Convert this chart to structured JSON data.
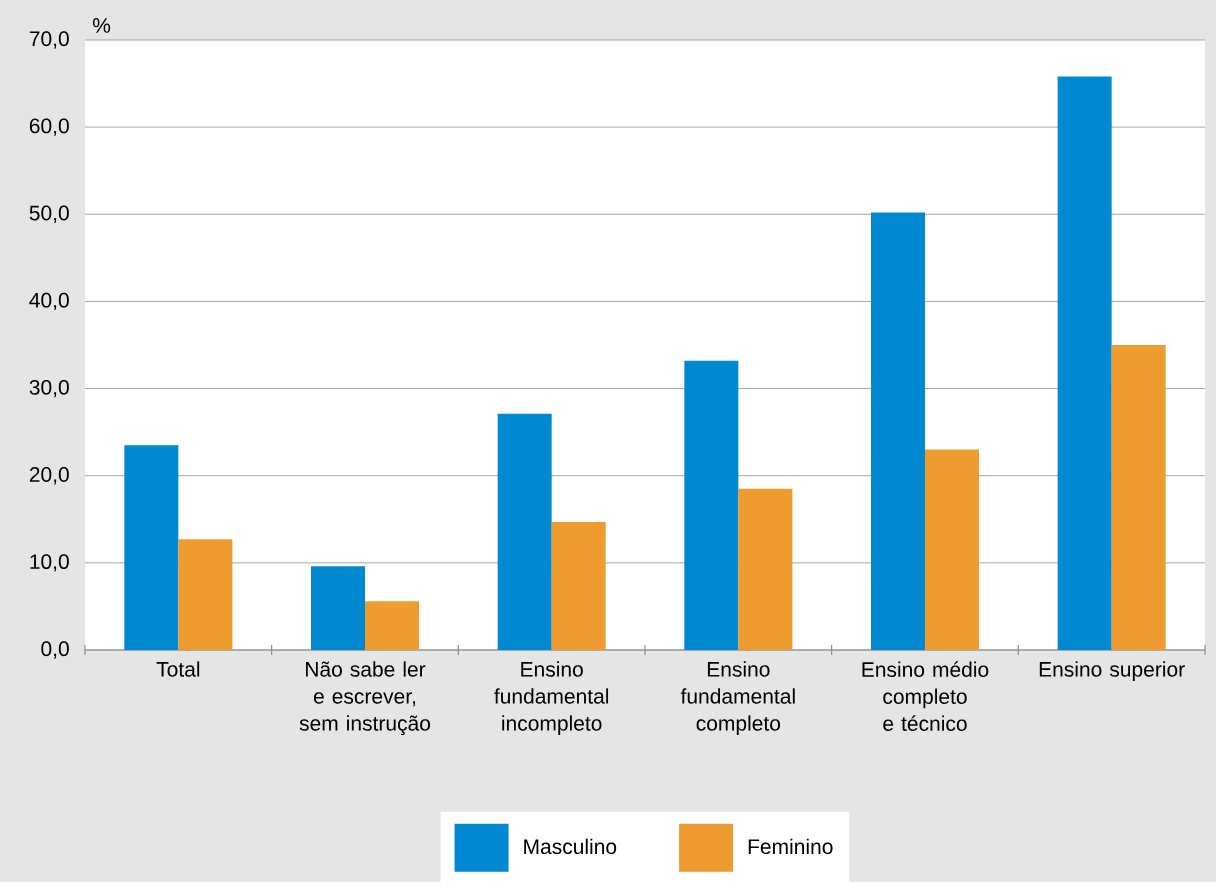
{
  "chart_data": {
    "type": "bar",
    "ylabel": "%",
    "categories": [
      "Total",
      "Não sabe ler e escrever, sem instrução",
      "Ensino fundamental incompleto",
      "Ensino fundamental completo",
      "Ensino médio completo e técnico",
      "Ensino superior"
    ],
    "series": [
      {
        "name": "Masculino",
        "color": "#0089d1",
        "values": [
          23.5,
          9.6,
          27.1,
          33.2,
          50.2,
          65.8
        ]
      },
      {
        "name": "Feminino",
        "color": "#ee9b2f",
        "values": [
          12.7,
          5.6,
          14.7,
          18.5,
          23.0,
          35.0
        ]
      }
    ],
    "ylim": [
      0,
      70
    ],
    "yticks": [
      {
        "value": 0,
        "label": "0,0"
      },
      {
        "value": 10,
        "label": "10,0"
      },
      {
        "value": 20,
        "label": "20,0"
      },
      {
        "value": 30,
        "label": "30,0"
      },
      {
        "value": 40,
        "label": "40,0"
      },
      {
        "value": 50,
        "label": "50,0"
      },
      {
        "value": 60,
        "label": "60,0"
      },
      {
        "value": 70,
        "label": "70,0"
      }
    ],
    "grid": "y",
    "legend": "bottom"
  }
}
